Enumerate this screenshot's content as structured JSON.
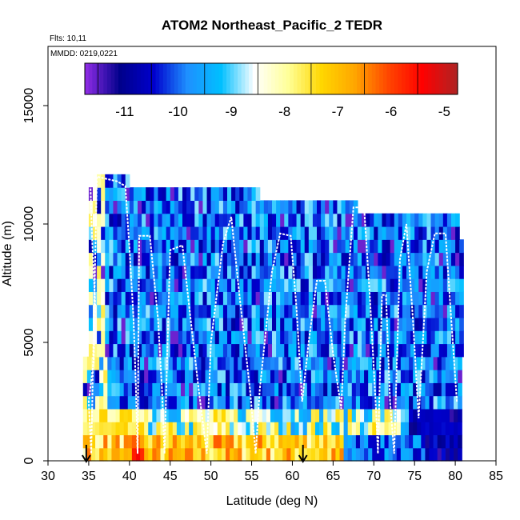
{
  "chart_data": {
    "type": "heatmap",
    "title": "ATOM2 Northeast_Pacific_2 TEDR",
    "annotations": [
      "Flts: 10,11",
      "MMDD: 0219,0221"
    ],
    "xlabel": "Latitude (deg N)",
    "ylabel": "Altitude (m)",
    "xlim": [
      30,
      85
    ],
    "ylim": [
      0,
      17500
    ],
    "x_ticks": [
      30,
      35,
      40,
      45,
      50,
      55,
      60,
      65,
      70,
      75,
      80,
      85
    ],
    "y_ticks": [
      0,
      5000,
      10000,
      15000
    ],
    "colorbar": {
      "range": [
        -11.75,
        -4.75
      ],
      "ticks": [
        -11,
        -10,
        -9,
        -8,
        -7,
        -6,
        -5
      ],
      "colors": [
        "#8a2be2",
        "#00008b",
        "#0000cd",
        "#1e90ff",
        "#00bfff",
        "#ffffff",
        "#ffff99",
        "#ffd700",
        "#ffa500",
        "#ff4500",
        "#ff0000",
        "#b22222"
      ]
    },
    "arrows_latitude": [
      34.7,
      61.3
    ],
    "flight_track": [
      [
        35.2,
        11800
      ],
      [
        35.4,
        9500
      ],
      [
        35.8,
        6500
      ],
      [
        35.6,
        4200
      ],
      [
        35.0,
        2500
      ],
      [
        35.3,
        300
      ],
      [
        36.0,
        12000
      ],
      [
        38.5,
        11800
      ],
      [
        39.5,
        11600
      ],
      [
        40.0,
        9000
      ],
      [
        40.5,
        6000
      ],
      [
        40.8,
        3000
      ],
      [
        41.0,
        300
      ],
      [
        41.2,
        9500
      ],
      [
        42.5,
        9500
      ],
      [
        43.5,
        6000
      ],
      [
        44.0,
        3000
      ],
      [
        44.3,
        300
      ],
      [
        45.0,
        8900
      ],
      [
        46.5,
        9100
      ],
      [
        47.5,
        6000
      ],
      [
        48.5,
        3000
      ],
      [
        49.5,
        300
      ],
      [
        50.0,
        5000
      ],
      [
        51.5,
        9200
      ],
      [
        52.5,
        10300
      ],
      [
        53.5,
        7000
      ],
      [
        54.8,
        3000
      ],
      [
        55.5,
        300
      ],
      [
        56.0,
        3000
      ],
      [
        57.5,
        8000
      ],
      [
        58.5,
        9600
      ],
      [
        59.8,
        9500
      ],
      [
        60.5,
        6500
      ],
      [
        61.2,
        2500
      ],
      [
        62.0,
        5000
      ],
      [
        63.0,
        7600
      ],
      [
        64.0,
        7600
      ],
      [
        65.0,
        4500
      ],
      [
        66.0,
        2200
      ],
      [
        66.5,
        6000
      ],
      [
        67.5,
        10700
      ],
      [
        68.8,
        10700
      ],
      [
        69.5,
        7000
      ],
      [
        70.3,
        2000
      ],
      [
        70.5,
        300
      ],
      [
        71.0,
        7000
      ],
      [
        71.5,
        7000
      ],
      [
        72.0,
        2500
      ],
      [
        72.5,
        300
      ],
      [
        73.2,
        8500
      ],
      [
        74.0,
        10000
      ],
      [
        74.8,
        6000
      ],
      [
        75.5,
        1800
      ],
      [
        76.5,
        8000
      ],
      [
        77.5,
        9600
      ],
      [
        78.8,
        9600
      ],
      [
        79.5,
        6000
      ],
      [
        80.2,
        2500
      ]
    ]
  }
}
